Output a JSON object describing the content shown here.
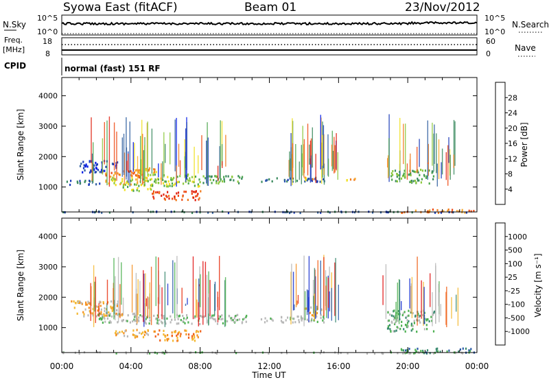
{
  "header": {
    "station": "Syowa East (fitACF)",
    "beam": "Beam 01",
    "date": "23/Nov/2012"
  },
  "panels": {
    "nsky": {
      "left_label": "N.Sky",
      "right_label": "N.Search",
      "ticks_left": [
        "10^5",
        "10^0"
      ],
      "ticks_right": [
        "10^5",
        "10^0"
      ]
    },
    "freq": {
      "left_label_1": "Freq.",
      "left_label_2": "[MHz]",
      "right_label": "Nave",
      "ticks_left": [
        "18",
        "8"
      ],
      "ticks_right": [
        "60",
        "0"
      ]
    },
    "cpid": {
      "label": "CPID",
      "mode_text": "normal (fast) 151 RF"
    }
  },
  "chart_data": [
    {
      "type": "heatmap",
      "title": "",
      "xlabel": "Time UT",
      "ylabel": "Slant Range [km]",
      "x_ticks": [
        "00:00",
        "04:00",
        "08:00",
        "12:00",
        "16:00",
        "20:00",
        "00:00"
      ],
      "xlim_hours": [
        0,
        24
      ],
      "ylim_km": [
        180,
        4600
      ],
      "y_ticks": [
        1000,
        2000,
        3000,
        4000
      ],
      "colorbar": {
        "label": "Power [dB]",
        "ticks": [
          "4",
          "8",
          "12",
          "16",
          "20",
          "24",
          "28"
        ],
        "colors": [
          "#0018e8",
          "#1c3cb8",
          "#2f5fa0",
          "#3a8a5e",
          "#4da64d",
          "#8cc83c",
          "#f0e020",
          "#f6a62c",
          "#f07a1c",
          "#ee4a14",
          "#e02010"
        ]
      },
      "regions": [
        {
          "t0": 0.2,
          "t1": 2.2,
          "r0": 1100,
          "r1": 1250,
          "level": 2
        },
        {
          "t0": 1.0,
          "t1": 3.2,
          "r0": 1500,
          "r1": 1900,
          "level": 1
        },
        {
          "t0": 2.3,
          "t1": 4.6,
          "r0": 1350,
          "r1": 1600,
          "level": 8
        },
        {
          "t0": 2.5,
          "t1": 5.0,
          "r0": 1100,
          "r1": 1350,
          "level": 6
        },
        {
          "t0": 3.5,
          "t1": 5.3,
          "r0": 900,
          "r1": 1150,
          "level": 5
        },
        {
          "t0": 4.8,
          "t1": 8.0,
          "r0": 1050,
          "r1": 1450,
          "level": 5
        },
        {
          "t0": 5.2,
          "t1": 8.0,
          "r0": 600,
          "r1": 900,
          "level": 9
        },
        {
          "t0": 4.0,
          "t1": 5.5,
          "r0": 1450,
          "r1": 1650,
          "level": 7
        },
        {
          "t0": 8.0,
          "t1": 10.6,
          "r0": 1150,
          "r1": 1400,
          "level": 4
        },
        {
          "t0": 11.5,
          "t1": 15.2,
          "r0": 1200,
          "r1": 1350,
          "level": 2
        },
        {
          "t0": 13.8,
          "t1": 14.6,
          "r0": 1250,
          "r1": 1350,
          "level": 7
        },
        {
          "t0": 16.2,
          "t1": 17.1,
          "r0": 1250,
          "r1": 1350,
          "level": 7
        },
        {
          "t0": 19.0,
          "t1": 21.5,
          "r0": 1150,
          "r1": 1600,
          "level": 4
        },
        {
          "t0": 19.5,
          "t1": 23.8,
          "r0": 180,
          "r1": 300,
          "level": 8
        },
        {
          "t0": 0.0,
          "t1": 24.0,
          "r0": 180,
          "r1": 230,
          "level": 2
        }
      ]
    },
    {
      "type": "heatmap",
      "title": "",
      "xlabel": "Time UT",
      "ylabel": "Slant Range [km]",
      "x_ticks": [
        "00:00",
        "04:00",
        "08:00",
        "12:00",
        "16:00",
        "20:00",
        "00:00"
      ],
      "xlim_hours": [
        0,
        24
      ],
      "ylim_km": [
        180,
        4600
      ],
      "y_ticks": [
        1000,
        2000,
        3000,
        4000
      ],
      "colorbar": {
        "label": "Velocity [m s⁻¹]",
        "ticks": [
          "1000",
          "500",
          "100",
          "25",
          "-25",
          "-100",
          "-500",
          "-1000"
        ],
        "colors": [
          "#1830d0",
          "#2a5aa8",
          "#3a8a70",
          "#4cb050",
          "#b8b8b8",
          "#b8b8b8",
          "#f4b830",
          "#f49020",
          "#f06018",
          "#e83010",
          "#e01010"
        ]
      },
      "regions": [
        {
          "t0": 0.5,
          "t1": 3.5,
          "r0": 1400,
          "r1": 1900,
          "level": 6
        },
        {
          "t0": 2.0,
          "t1": 4.5,
          "r0": 1200,
          "r1": 1500,
          "level": 4
        },
        {
          "t0": 3.0,
          "t1": 5.0,
          "r0": 700,
          "r1": 1000,
          "level": 6
        },
        {
          "t0": 4.0,
          "t1": 10.8,
          "r0": 1150,
          "r1": 1450,
          "level": 4
        },
        {
          "t0": 5.3,
          "t1": 8.0,
          "r0": 600,
          "r1": 950,
          "level": 7
        },
        {
          "t0": 11.5,
          "t1": 15.5,
          "r0": 1200,
          "r1": 1400,
          "level": 4
        },
        {
          "t0": 14.0,
          "t1": 15.0,
          "r0": 1400,
          "r1": 1700,
          "level": 6
        },
        {
          "t0": 18.8,
          "t1": 21.5,
          "r0": 900,
          "r1": 1600,
          "level": 3
        },
        {
          "t0": 19.5,
          "t1": 23.8,
          "r0": 180,
          "r1": 350,
          "level": 2
        },
        {
          "t0": 0.0,
          "t1": 24.0,
          "r0": 180,
          "r1": 230,
          "level": 4
        }
      ]
    }
  ]
}
